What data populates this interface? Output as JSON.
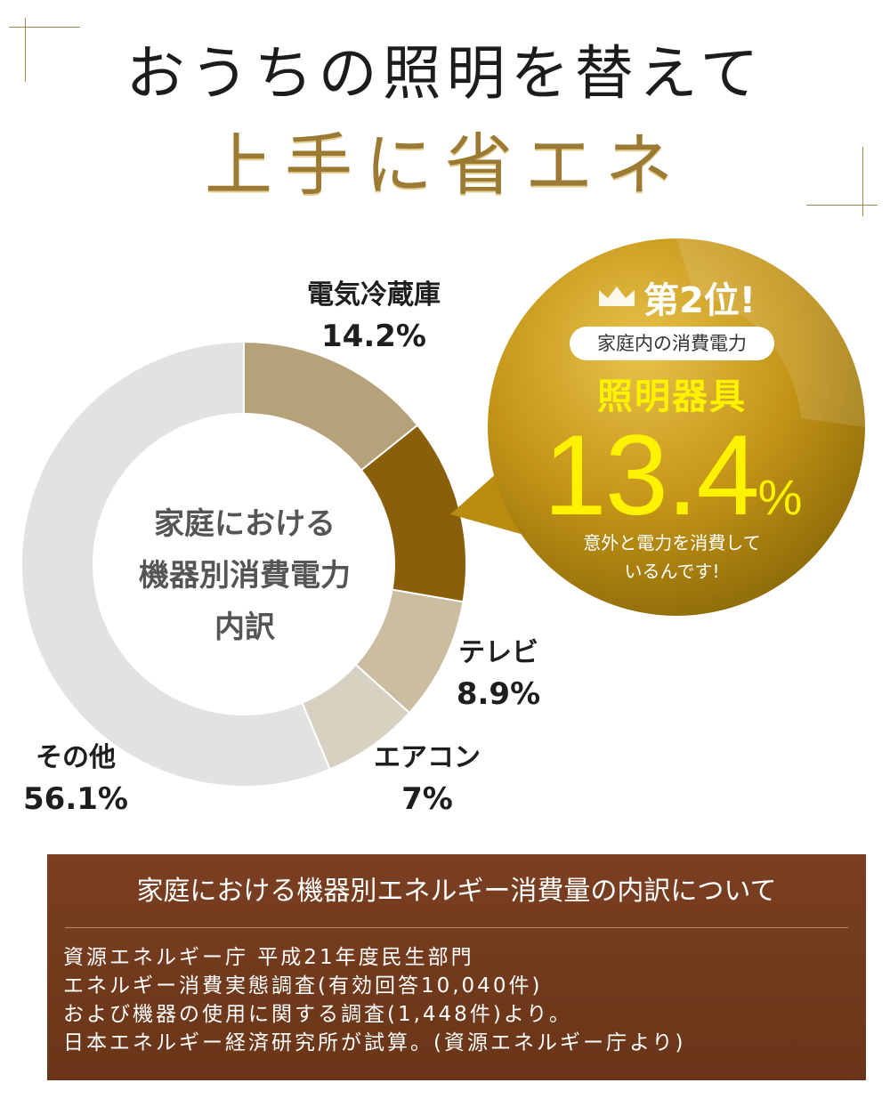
{
  "header": {
    "title_line1": "おうちの照明を替えて",
    "title_line2": "上手に省エネ"
  },
  "callout": {
    "rank": "第2位!",
    "pill": "家庭内の消費電力",
    "item": "照明器具",
    "value": "13.4",
    "unit": "%",
    "note_line1": "意外と電力を消費して",
    "note_line2": "いるんです!"
  },
  "chart_data": {
    "type": "pie",
    "variant": "donut",
    "center_label": [
      "家庭における",
      "機器別消費電力",
      "内訳"
    ],
    "slices": [
      {
        "name": "電気冷蔵庫",
        "value": 14.2,
        "label": "14.2%",
        "color": "#b6a27a"
      },
      {
        "name": "照明器具",
        "value": 13.4,
        "label": "13.4%",
        "color": "#8a5f0c"
      },
      {
        "name": "テレビ",
        "value": 8.9,
        "label": "8.9%",
        "color": "#cbbd9f"
      },
      {
        "name": "エアコン",
        "value": 7.0,
        "label": "7%",
        "color": "#d7d1c2"
      },
      {
        "name": "その他",
        "value": 56.1,
        "label": "56.1%",
        "color": "#e2e2e2"
      }
    ]
  },
  "notes": {
    "title": "家庭における機器別エネルギー消費量の内訳について",
    "lines": [
      "資源エネルギー庁 平成21年度民生部門",
      "エネルギー消費実態調査(有効回答10,040件)",
      "および機器の使用に関する調査(1,448件)より。",
      "日本エネルギー経済研究所が試算。(資源エネルギー庁より)"
    ]
  },
  "colors": {
    "gold_accent": "#a8854a",
    "callout_gold": "#b98c10",
    "highlight_yellow": "#fff200",
    "note_bg": "#73391d"
  }
}
